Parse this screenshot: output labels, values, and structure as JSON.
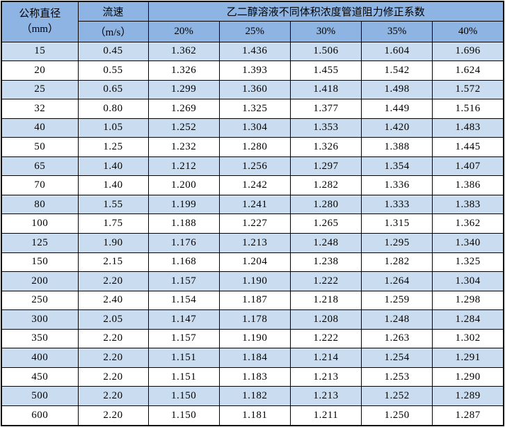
{
  "table": {
    "header": {
      "diameter_label": "公称直径",
      "diameter_unit": "（mm）",
      "velocity_label": "流速",
      "velocity_unit": "（m/s）",
      "span_title": "乙二醇溶液不同体积浓度管道阻力修正系数",
      "concentrations": [
        "20%",
        "25%",
        "30%",
        "35%",
        "40%"
      ]
    },
    "rows": [
      {
        "dn": "15",
        "velocity": "0.45",
        "factors": [
          "1.362",
          "1.436",
          "1.506",
          "1.604",
          "1.696"
        ]
      },
      {
        "dn": "20",
        "velocity": "0.55",
        "factors": [
          "1.326",
          "1.393",
          "1.455",
          "1.542",
          "1.624"
        ]
      },
      {
        "dn": "25",
        "velocity": "0.65",
        "factors": [
          "1.299",
          "1.360",
          "1.418",
          "1.498",
          "1.572"
        ]
      },
      {
        "dn": "32",
        "velocity": "0.80",
        "factors": [
          "1.269",
          "1.325",
          "1.377",
          "1.449",
          "1.516"
        ]
      },
      {
        "dn": "40",
        "velocity": "1.05",
        "factors": [
          "1.252",
          "1.304",
          "1.353",
          "1.420",
          "1.483"
        ]
      },
      {
        "dn": "50",
        "velocity": "1.25",
        "factors": [
          "1.232",
          "1.280",
          "1.326",
          "1.388",
          "1.445"
        ]
      },
      {
        "dn": "65",
        "velocity": "1.40",
        "factors": [
          "1.212",
          "1.256",
          "1.297",
          "1.354",
          "1.407"
        ]
      },
      {
        "dn": "70",
        "velocity": "1.40",
        "factors": [
          "1.200",
          "1.242",
          "1.282",
          "1.336",
          "1.386"
        ]
      },
      {
        "dn": "80",
        "velocity": "1.55",
        "factors": [
          "1.199",
          "1.241",
          "1.280",
          "1.333",
          "1.383"
        ]
      },
      {
        "dn": "100",
        "velocity": "1.75",
        "factors": [
          "1.188",
          "1.227",
          "1.265",
          "1.315",
          "1.362"
        ]
      },
      {
        "dn": "125",
        "velocity": "1.90",
        "factors": [
          "1.176",
          "1.213",
          "1.248",
          "1.295",
          "1.340"
        ]
      },
      {
        "dn": "150",
        "velocity": "2.15",
        "factors": [
          "1.168",
          "1.204",
          "1.238",
          "1.282",
          "1.325"
        ]
      },
      {
        "dn": "200",
        "velocity": "2.20",
        "factors": [
          "1.157",
          "1.190",
          "1.222",
          "1.264",
          "1.304"
        ]
      },
      {
        "dn": "250",
        "velocity": "2.40",
        "factors": [
          "1.154",
          "1.187",
          "1.218",
          "1.259",
          "1.298"
        ]
      },
      {
        "dn": "300",
        "velocity": "2.05",
        "factors": [
          "1.147",
          "1.178",
          "1.208",
          "1.248",
          "1.284"
        ]
      },
      {
        "dn": "350",
        "velocity": "2.20",
        "factors": [
          "1.157",
          "1.190",
          "1.222",
          "1.263",
          "1.302"
        ]
      },
      {
        "dn": "400",
        "velocity": "2.20",
        "factors": [
          "1.151",
          "1.184",
          "1.214",
          "1.254",
          "1.291"
        ]
      },
      {
        "dn": "450",
        "velocity": "2.20",
        "factors": [
          "1.151",
          "1.183",
          "1.213",
          "1.253",
          "1.290"
        ]
      },
      {
        "dn": "500",
        "velocity": "2.20",
        "factors": [
          "1.150",
          "1.182",
          "1.213",
          "1.252",
          "1.289"
        ]
      },
      {
        "dn": "600",
        "velocity": "2.20",
        "factors": [
          "1.150",
          "1.181",
          "1.211",
          "1.250",
          "1.287"
        ]
      }
    ]
  },
  "colors": {
    "header_bg": "#8db4e2",
    "stripe_row_bg": "#c9dcf0",
    "plain_row_bg": "#ffffff",
    "border": "#000000",
    "text": "#000000"
  }
}
